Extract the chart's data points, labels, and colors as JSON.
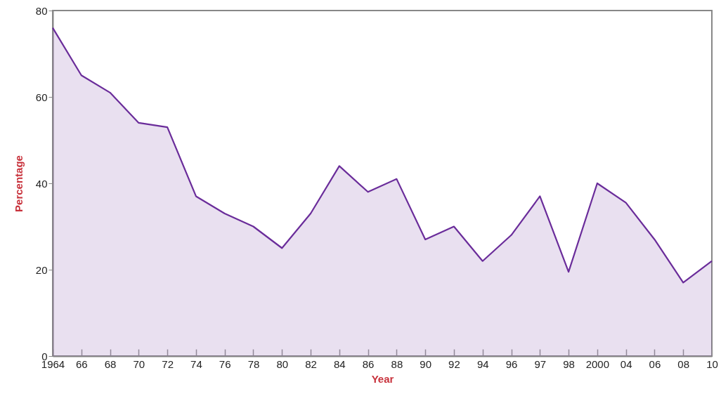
{
  "chart_data": {
    "type": "area",
    "xlabel": "Year",
    "ylabel": "Percentage",
    "categories": [
      "1964",
      "66",
      "68",
      "70",
      "72",
      "74",
      "76",
      "78",
      "80",
      "82",
      "84",
      "86",
      "88",
      "90",
      "92",
      "94",
      "96",
      "97",
      "98",
      "2000",
      "04",
      "06",
      "08",
      "10"
    ],
    "series": [
      {
        "color": "#6a2c9a",
        "values": [
          76,
          65,
          61,
          54,
          53,
          37,
          33,
          30,
          25,
          33,
          44,
          38,
          41,
          27,
          30,
          22,
          28,
          37,
          19.5,
          40,
          35.5,
          27,
          17,
          22
        ]
      }
    ],
    "ylim": [
      0,
      80
    ],
    "yticks": [
      0,
      20,
      40,
      60,
      80
    ],
    "grid": false
  }
}
